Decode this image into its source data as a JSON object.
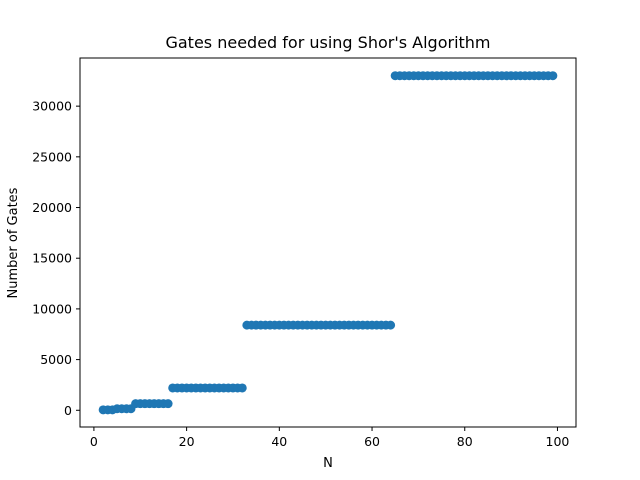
{
  "chart_data": {
    "type": "scatter",
    "title": "Gates needed for using Shor's Algorithm",
    "xlabel": "N",
    "ylabel": "Number of Gates",
    "xlim": [
      -3,
      104
    ],
    "ylim": [
      -1650,
      34750
    ],
    "xticks": [
      0,
      20,
      40,
      60,
      80,
      100
    ],
    "yticks": [
      0,
      5000,
      10000,
      15000,
      20000,
      25000,
      30000
    ],
    "marker_color": "#1f77b4",
    "grid": false,
    "legend": "none",
    "series": [
      {
        "steps": [
          {
            "x_from": 2,
            "x_to": 4,
            "y": 40
          },
          {
            "x_from": 5,
            "x_to": 8,
            "y": 150
          },
          {
            "x_from": 9,
            "x_to": 16,
            "y": 650
          },
          {
            "x_from": 17,
            "x_to": 32,
            "y": 2200
          },
          {
            "x_from": 33,
            "x_to": 64,
            "y": 8400
          },
          {
            "x_from": 65,
            "x_to": 99,
            "y": 33000
          }
        ]
      }
    ]
  }
}
